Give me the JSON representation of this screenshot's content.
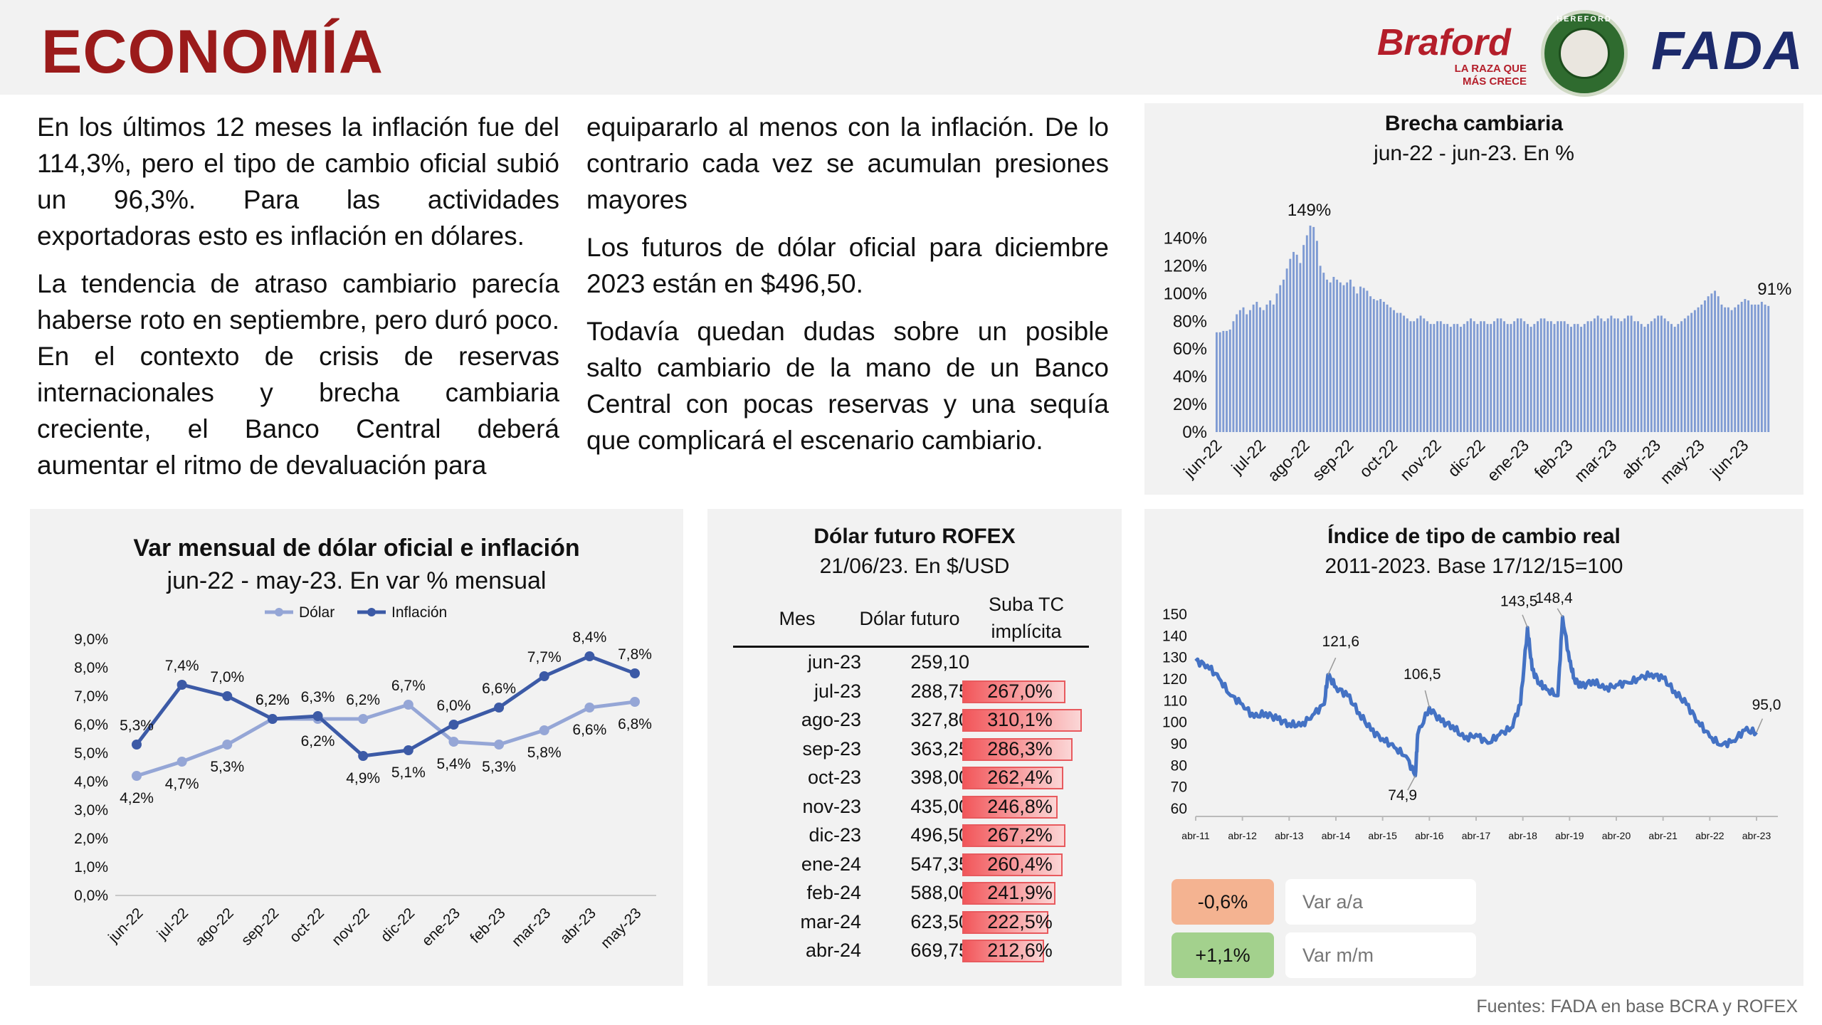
{
  "header": {
    "title": "ECONOMÍA",
    "braford": {
      "name": "Braford",
      "tagline1": "LA RAZA QUE",
      "tagline2": "MÁS CRECE"
    },
    "seal_text": "HEREFORD",
    "fada": "FADA"
  },
  "text": {
    "p1": "En los últimos 12 meses la inflación fue del 114,3%, pero el tipo de cambio oficial subió un 96,3%. Para las actividades exportadoras esto es inflación en dólares.",
    "p2": "La tendencia de atraso cambiario parecía haberse roto en septiembre, pero duró poco. En el contexto de crisis de reservas internacionales y brecha cambiaria creciente, el Banco Central deberá aumentar el ritmo de devaluación para",
    "p3": "equipararlo al menos con la inflación. De lo contrario cada vez se acumulan presiones mayores",
    "p4": "Los futuros de dólar oficial para diciembre 2023 están en $496,50.",
    "p5": "Todavía quedan dudas sobre un posible salto cambiario de la mano de un Banco Central con pocas reservas y una sequía que complicará el escenario cambiario."
  },
  "chart_data": [
    {
      "id": "brecha",
      "type": "bar",
      "title": "Brecha cambiaria",
      "subtitle": "jun-22 - jun-23. En %",
      "ylim": [
        0,
        150
      ],
      "y_ticks": [
        "0%",
        "20%",
        "40%",
        "60%",
        "80%",
        "100%",
        "120%",
        "140%"
      ],
      "x_ticks": [
        "jun-22",
        "jul-22",
        "ago-22",
        "sep-22",
        "oct-22",
        "nov-22",
        "dic-22",
        "ene-23",
        "feb-23",
        "mar-23",
        "abr-23",
        "may-23",
        "jun-23"
      ],
      "annotations": {
        "peak": "149%",
        "last": "91%"
      },
      "values": [
        72,
        72,
        73,
        73,
        74,
        80,
        85,
        88,
        90,
        85,
        88,
        92,
        94,
        90,
        88,
        92,
        95,
        92,
        100,
        106,
        110,
        118,
        125,
        130,
        128,
        122,
        135,
        142,
        149,
        148,
        138,
        120,
        115,
        110,
        108,
        112,
        110,
        108,
        106,
        108,
        110,
        105,
        100,
        105,
        104,
        102,
        98,
        96,
        95,
        96,
        94,
        92,
        90,
        88,
        86,
        86,
        84,
        82,
        80,
        80,
        82,
        84,
        82,
        80,
        78,
        78,
        80,
        80,
        78,
        78,
        76,
        78,
        78,
        76,
        78,
        80,
        82,
        80,
        78,
        80,
        80,
        78,
        78,
        80,
        82,
        82,
        80,
        78,
        78,
        80,
        82,
        82,
        80,
        78,
        76,
        78,
        80,
        82,
        82,
        80,
        80,
        78,
        80,
        80,
        80,
        78,
        76,
        78,
        78,
        76,
        78,
        80,
        80,
        82,
        84,
        82,
        80,
        82,
        84,
        82,
        82,
        80,
        82,
        84,
        84,
        80,
        80,
        78,
        76,
        78,
        80,
        82,
        84,
        84,
        82,
        80,
        78,
        76,
        78,
        80,
        82,
        84,
        86,
        88,
        90,
        92,
        95,
        98,
        100,
        102,
        98,
        92,
        90,
        90,
        88,
        90,
        92,
        94,
        96,
        95,
        92,
        92,
        92,
        94,
        92,
        91
      ]
    },
    {
      "id": "var_mensual",
      "type": "line",
      "title": "Var mensual de dólar oficial e inflación",
      "subtitle": "jun-22 - may-23. En var % mensual",
      "categories": [
        "jun-22",
        "jul-22",
        "ago-22",
        "sep-22",
        "oct-22",
        "nov-22",
        "dic-22",
        "ene-23",
        "feb-23",
        "mar-23",
        "abr-23",
        "may-23"
      ],
      "ylim": [
        0,
        9
      ],
      "y_ticks": [
        "0,0%",
        "1,0%",
        "2,0%",
        "3,0%",
        "4,0%",
        "5,0%",
        "6,0%",
        "7,0%",
        "8,0%",
        "9,0%"
      ],
      "legend_position": "top",
      "series": [
        {
          "name": "Dólar",
          "color": "#95a6d6",
          "values": [
            4.2,
            4.7,
            5.3,
            6.2,
            6.2,
            6.2,
            6.7,
            5.4,
            5.3,
            5.8,
            6.6,
            6.8
          ],
          "labels": [
            "4,2%",
            "4,7%",
            "5,3%",
            "6,2%",
            "6,2%",
            "6,2%",
            "6,7%",
            "5,4%",
            "5,3%",
            "5,8%",
            "6,6%",
            "6,8%"
          ]
        },
        {
          "name": "Inflación",
          "color": "#3c5aa6",
          "values": [
            5.3,
            7.4,
            7.0,
            6.2,
            6.3,
            4.9,
            5.1,
            6.0,
            6.6,
            7.7,
            8.4,
            7.8
          ],
          "labels": [
            "5,3%",
            "7,4%",
            "7,0%",
            "6,2%",
            "6,3%",
            "4,9%",
            "5,1%",
            "6,0%",
            "6,6%",
            "7,7%",
            "8,4%",
            "7,8%"
          ]
        }
      ]
    },
    {
      "id": "rofex",
      "type": "table",
      "title": "Dólar futuro ROFEX",
      "subtitle": "21/06/23. En $/USD",
      "columns": [
        "Mes",
        "Dólar futuro",
        "Suba TC",
        "implícita"
      ],
      "rows": [
        {
          "mes": "jun-23",
          "valor": "259,10",
          "suba": "",
          "suba_value": 0
        },
        {
          "mes": "jul-23",
          "valor": "288,75",
          "suba": "267,0%",
          "suba_value": 267.0
        },
        {
          "mes": "ago-23",
          "valor": "327,80",
          "suba": "310,1%",
          "suba_value": 310.1
        },
        {
          "mes": "sep-23",
          "valor": "363,25",
          "suba": "286,3%",
          "suba_value": 286.3
        },
        {
          "mes": "oct-23",
          "valor": "398,00",
          "suba": "262,4%",
          "suba_value": 262.4
        },
        {
          "mes": "nov-23",
          "valor": "435,00",
          "suba": "246,8%",
          "suba_value": 246.8
        },
        {
          "mes": "dic-23",
          "valor": "496,50",
          "suba": "267,2%",
          "suba_value": 267.2
        },
        {
          "mes": "ene-24",
          "valor": "547,35",
          "suba": "260,4%",
          "suba_value": 260.4
        },
        {
          "mes": "feb-24",
          "valor": "588,00",
          "suba": "241,9%",
          "suba_value": 241.9
        },
        {
          "mes": "mar-24",
          "valor": "623,50",
          "suba": "222,5%",
          "suba_value": 222.5
        },
        {
          "mes": "abr-24",
          "valor": "669,75",
          "suba": "212,6%",
          "suba_value": 212.6
        }
      ]
    },
    {
      "id": "itcr",
      "type": "line",
      "title": "Índice de tipo de cambio real",
      "subtitle": "2011-2023. Base 17/12/15=100",
      "ylim": [
        60,
        150
      ],
      "y_ticks": [
        "60",
        "70",
        "80",
        "90",
        "100",
        "110",
        "120",
        "130",
        "140",
        "150"
      ],
      "x_ticks": [
        "abr-11",
        "abr-12",
        "abr-13",
        "abr-14",
        "abr-15",
        "abr-16",
        "abr-17",
        "abr-18",
        "abr-19",
        "abr-20",
        "abr-21",
        "abr-22",
        "abr-23"
      ],
      "annotations": [
        "121,6",
        "74,9",
        "106,5",
        "143,5",
        "148,4",
        "95,0"
      ],
      "color": "#4472c4",
      "x": [
        2011.25,
        2011.5,
        2011.75,
        2012.0,
        2012.25,
        2012.5,
        2012.75,
        2013.0,
        2013.25,
        2013.5,
        2013.75,
        2014.0,
        2014.08,
        2014.25,
        2014.5,
        2014.75,
        2015.0,
        2015.25,
        2015.5,
        2015.75,
        2015.95,
        2016.0,
        2016.25,
        2016.5,
        2016.75,
        2017.0,
        2017.25,
        2017.5,
        2017.75,
        2018.0,
        2018.2,
        2018.35,
        2018.45,
        2018.6,
        2018.75,
        2019.0,
        2019.1,
        2019.25,
        2019.35,
        2019.5,
        2019.75,
        2020.0,
        2020.25,
        2020.5,
        2020.75,
        2021.0,
        2021.25,
        2021.5,
        2021.75,
        2022.0,
        2022.25,
        2022.5,
        2022.75,
        2023.0,
        2023.25
      ],
      "values": [
        128,
        126,
        120,
        112,
        108,
        102,
        104,
        101,
        99,
        98,
        103,
        108,
        121.6,
        116,
        112,
        104,
        96,
        92,
        88,
        84,
        74.9,
        94,
        106.5,
        100,
        98,
        92,
        94,
        90,
        94,
        97,
        108,
        143.5,
        124,
        118,
        115,
        112,
        148.4,
        128,
        120,
        116,
        119,
        115,
        117,
        118,
        120,
        122,
        120,
        114,
        108,
        100,
        93,
        89,
        91,
        96,
        95
      ]
    }
  ],
  "rofex_bar_max": 310.1,
  "indicators": {
    "var_aa_value": "-0,6%",
    "var_aa_label": "Var a/a",
    "var_mm_value": "+1,1%",
    "var_mm_label": "Var m/m"
  },
  "footer": "Fuentes: FADA en base BCRA y ROFEX",
  "colors": {
    "title": "#9b1b1b",
    "brecha_bar": "#7f9bd3",
    "dolar": "#95a6d6",
    "inflacion": "#3c5aa6",
    "itcr": "#4472c4"
  }
}
